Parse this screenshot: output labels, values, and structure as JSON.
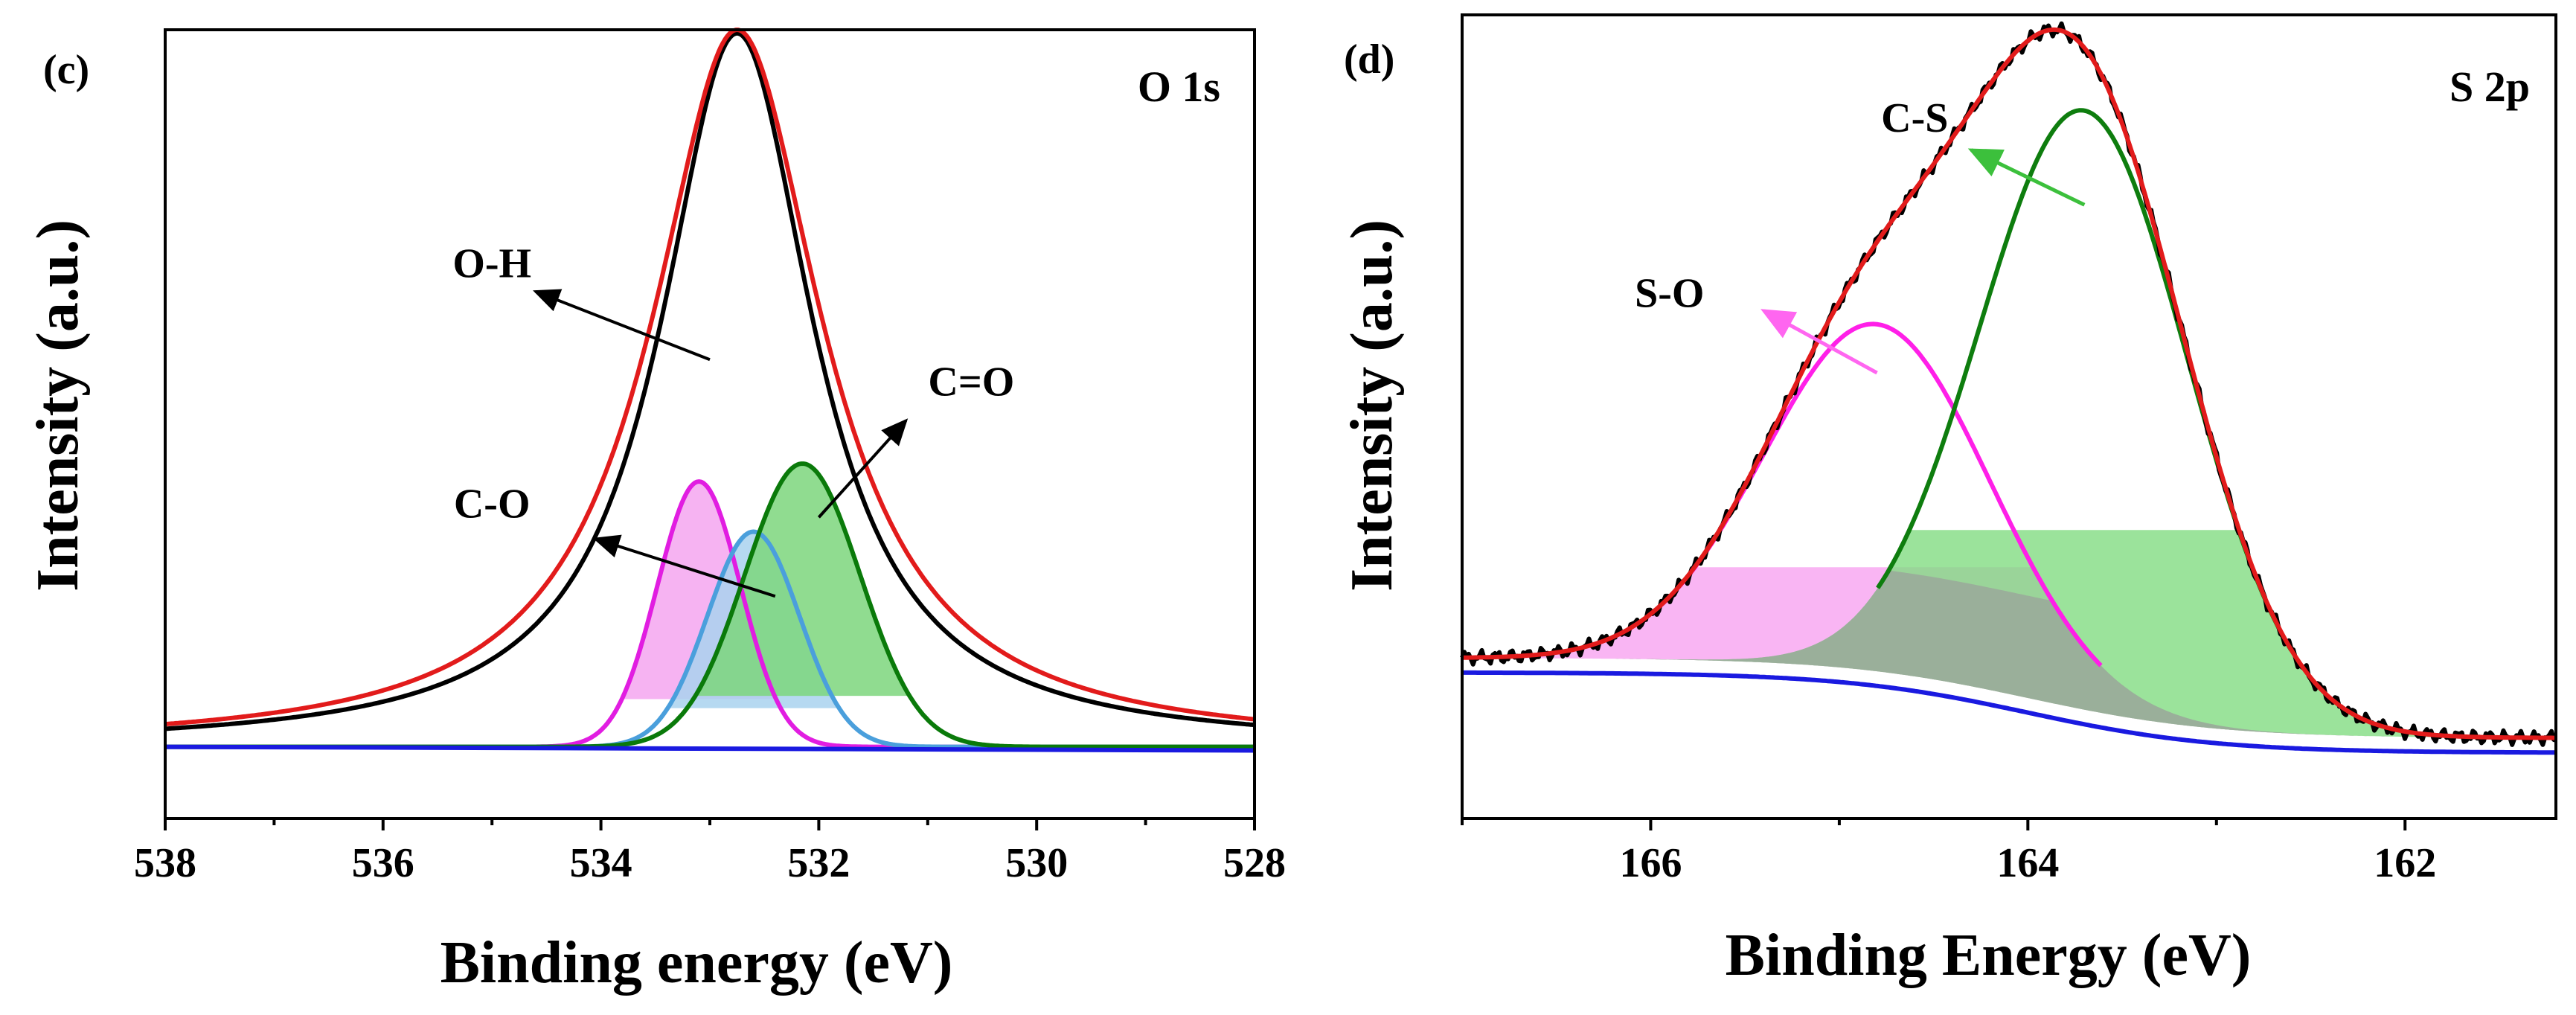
{
  "chart_data": [
    {
      "id": "c",
      "type": "line",
      "panel_label": "(c)",
      "corner_label": "O 1s",
      "xlabel": "Binding energy (eV)",
      "ylabel": "Intensity (a.u.)",
      "xlim": [
        538,
        528
      ],
      "ylim": [
        0,
        1.1
      ],
      "x_reversed": true,
      "xticks": [
        538,
        536,
        534,
        532,
        530,
        528
      ],
      "xtick_labels": [
        "538",
        "536",
        "534",
        "532",
        "530",
        "528"
      ],
      "baseline": 0.1,
      "peaks": [
        {
          "name": "O-H",
          "center": 533.1,
          "amplitude": 0.37,
          "fwhm": 0.9,
          "color": "#e11de1",
          "fill": "#f4a6f0"
        },
        {
          "name": "C-O",
          "center": 532.6,
          "amplitude": 0.3,
          "fwhm": 1.0,
          "color": "#4a9fdc",
          "fill": "#a9d2ee"
        },
        {
          "name": "C=O",
          "center": 532.15,
          "amplitude": 0.395,
          "fwhm": 1.25,
          "color": "#0a7a0a",
          "fill": "#7dd67d"
        }
      ],
      "envelope": {
        "center": 532.75,
        "amplitude": 1.0,
        "fwhm": 1.9,
        "color": "#e21b1b"
      },
      "raw_color": "#000000",
      "background_color": "#1a1ae0",
      "annotations": [
        {
          "text": "O-H",
          "x": 535.0,
          "y": 0.755,
          "arrow_from": [
            533.0,
            0.64
          ],
          "arrow_to": [
            534.6,
            0.735
          ]
        },
        {
          "text": "C-O",
          "x": 535.0,
          "y": 0.42,
          "arrow_from": [
            532.4,
            0.31
          ],
          "arrow_to": [
            534.05,
            0.39
          ]
        },
        {
          "text": "C=O",
          "x": 530.6,
          "y": 0.59,
          "arrow_from": [
            532.0,
            0.42
          ],
          "arrow_to": [
            531.2,
            0.555
          ]
        }
      ]
    },
    {
      "id": "d",
      "type": "line",
      "panel_label": "(d)",
      "corner_label": "S 2p",
      "xlabel": "Binding Energy (eV)",
      "ylabel": "Intensity (a.u.)",
      "xlim": [
        167,
        161.2
      ],
      "ylim": [
        0,
        1.1
      ],
      "x_reversed": true,
      "xticks": [
        166,
        164,
        162
      ],
      "xtick_labels": [
        "166",
        "164",
        "162"
      ],
      "baseline_high": 0.22,
      "baseline_low": 0.11,
      "baseline_step_center": 164.0,
      "peaks": [
        {
          "name": "S-O",
          "center": 164.8,
          "amplitude": 0.475,
          "fwhm": 1.4,
          "color": "#ff1fe8",
          "fill": "#f7a2f0"
        },
        {
          "name": "C-S",
          "center": 163.7,
          "amplitude": 0.82,
          "fwhm": 1.3,
          "color": "#0e7d0e",
          "fill": "#82dc82"
        }
      ],
      "envelope_color": "#e21b1b",
      "raw_color": "#000000",
      "background_color": "#1a1ae0",
      "annotations": [
        {
          "text": "C-S",
          "x": 164.6,
          "y": 0.94,
          "arrow_from": [
            163.7,
            0.84
          ],
          "arrow_to": [
            164.3,
            0.915
          ]
        },
        {
          "text": "S-O",
          "x": 165.9,
          "y": 0.7,
          "arrow_from": [
            164.8,
            0.61
          ],
          "arrow_to": [
            165.4,
            0.695
          ]
        }
      ]
    }
  ]
}
